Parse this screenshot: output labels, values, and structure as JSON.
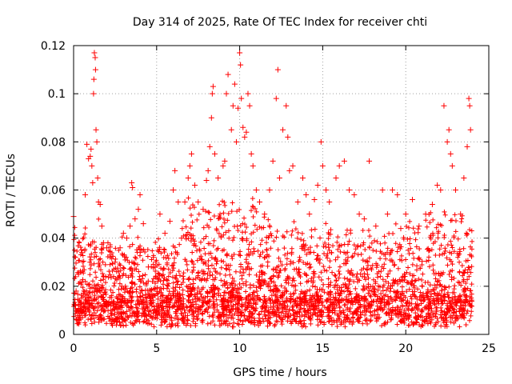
{
  "chart_data": {
    "type": "scatter",
    "title": "Day 314 of 2025, Rate Of TEC Index for receiver chti",
    "xlabel": "GPS time / hours",
    "ylabel": "ROTI / TECUs",
    "xlim": [
      0,
      25
    ],
    "ylim": [
      0,
      0.12
    ],
    "xticks": [
      0,
      5,
      10,
      15,
      20,
      25
    ],
    "yticks": [
      0,
      0.02,
      0.04,
      0.06,
      0.08,
      0.1,
      0.12
    ],
    "xtick_labels": [
      "0",
      "5",
      "10",
      "15",
      "20",
      "25"
    ],
    "ytick_labels": [
      "0",
      "0.02",
      "0.04",
      "0.06",
      "0.08",
      "0.1",
      "0.12"
    ],
    "grid": true,
    "marker": "plus",
    "color": "#ff0000",
    "series": [
      {
        "points": [
          [
            0.0,
            0.049
          ],
          [
            0.1,
            0.012
          ],
          [
            0.15,
            0.018
          ],
          [
            0.3,
            0.025
          ],
          [
            0.5,
            0.034
          ],
          [
            0.7,
            0.058
          ],
          [
            0.8,
            0.079
          ],
          [
            0.9,
            0.073
          ],
          [
            1.0,
            0.074
          ],
          [
            1.05,
            0.077
          ],
          [
            1.1,
            0.07
          ],
          [
            1.15,
            0.063
          ],
          [
            1.2,
            0.1
          ],
          [
            1.22,
            0.106
          ],
          [
            1.25,
            0.117
          ],
          [
            1.3,
            0.115
          ],
          [
            1.32,
            0.11
          ],
          [
            1.35,
            0.085
          ],
          [
            1.4,
            0.08
          ],
          [
            1.45,
            0.065
          ],
          [
            1.5,
            0.055
          ],
          [
            1.6,
            0.054
          ],
          [
            1.7,
            0.045
          ],
          [
            1.8,
            0.038
          ],
          [
            2.0,
            0.036
          ],
          [
            2.2,
            0.033
          ],
          [
            2.5,
            0.03
          ],
          [
            2.8,
            0.036
          ],
          [
            3.0,
            0.042
          ],
          [
            3.2,
            0.04
          ],
          [
            3.4,
            0.045
          ],
          [
            3.5,
            0.063
          ],
          [
            3.55,
            0.061
          ],
          [
            3.7,
            0.048
          ],
          [
            3.9,
            0.052
          ],
          [
            4.0,
            0.058
          ],
          [
            4.2,
            0.046
          ],
          [
            4.5,
            0.028
          ],
          [
            4.8,
            0.032
          ],
          [
            5.2,
            0.05
          ],
          [
            5.5,
            0.042
          ],
          [
            5.8,
            0.047
          ],
          [
            6.0,
            0.06
          ],
          [
            6.1,
            0.068
          ],
          [
            6.3,
            0.055
          ],
          [
            6.5,
            0.04
          ],
          [
            6.7,
            0.055
          ],
          [
            6.9,
            0.065
          ],
          [
            7.0,
            0.07
          ],
          [
            7.1,
            0.075
          ],
          [
            7.3,
            0.062
          ],
          [
            7.5,
            0.055
          ],
          [
            7.8,
            0.052
          ],
          [
            8.0,
            0.064
          ],
          [
            8.1,
            0.068
          ],
          [
            8.2,
            0.078
          ],
          [
            8.3,
            0.09
          ],
          [
            8.35,
            0.1
          ],
          [
            8.4,
            0.103
          ],
          [
            8.5,
            0.075
          ],
          [
            8.7,
            0.065
          ],
          [
            9.0,
            0.07
          ],
          [
            9.1,
            0.072
          ],
          [
            9.2,
            0.1
          ],
          [
            9.3,
            0.108
          ],
          [
            9.5,
            0.085
          ],
          [
            9.6,
            0.095
          ],
          [
            9.7,
            0.104
          ],
          [
            9.8,
            0.08
          ],
          [
            9.9,
            0.094
          ],
          [
            10.0,
            0.117
          ],
          [
            10.05,
            0.112
          ],
          [
            10.1,
            0.098
          ],
          [
            10.2,
            0.086
          ],
          [
            10.3,
            0.082
          ],
          [
            10.4,
            0.084
          ],
          [
            10.5,
            0.1
          ],
          [
            10.6,
            0.095
          ],
          [
            10.7,
            0.075
          ],
          [
            10.8,
            0.07
          ],
          [
            11.0,
            0.06
          ],
          [
            11.2,
            0.055
          ],
          [
            11.5,
            0.05
          ],
          [
            11.8,
            0.06
          ],
          [
            12.0,
            0.072
          ],
          [
            12.2,
            0.098
          ],
          [
            12.3,
            0.11
          ],
          [
            12.4,
            0.065
          ],
          [
            12.6,
            0.085
          ],
          [
            12.8,
            0.095
          ],
          [
            12.9,
            0.082
          ],
          [
            13.0,
            0.068
          ],
          [
            13.2,
            0.07
          ],
          [
            13.5,
            0.055
          ],
          [
            13.8,
            0.065
          ],
          [
            14.0,
            0.058
          ],
          [
            14.2,
            0.05
          ],
          [
            14.5,
            0.056
          ],
          [
            14.7,
            0.062
          ],
          [
            14.9,
            0.08
          ],
          [
            15.0,
            0.07
          ],
          [
            15.2,
            0.06
          ],
          [
            15.4,
            0.055
          ],
          [
            15.8,
            0.065
          ],
          [
            16.0,
            0.07
          ],
          [
            16.3,
            0.072
          ],
          [
            16.6,
            0.06
          ],
          [
            16.9,
            0.058
          ],
          [
            17.2,
            0.05
          ],
          [
            17.5,
            0.048
          ],
          [
            17.8,
            0.072
          ],
          [
            18.2,
            0.045
          ],
          [
            18.6,
            0.06
          ],
          [
            18.9,
            0.05
          ],
          [
            19.2,
            0.06
          ],
          [
            19.5,
            0.058
          ],
          [
            19.7,
            0.044
          ],
          [
            20.0,
            0.05
          ],
          [
            20.4,
            0.056
          ],
          [
            20.8,
            0.045
          ],
          [
            21.2,
            0.05
          ],
          [
            21.6,
            0.054
          ],
          [
            21.9,
            0.062
          ],
          [
            22.1,
            0.06
          ],
          [
            22.3,
            0.095
          ],
          [
            22.5,
            0.08
          ],
          [
            22.6,
            0.085
          ],
          [
            22.7,
            0.075
          ],
          [
            22.8,
            0.07
          ],
          [
            23.0,
            0.06
          ],
          [
            23.3,
            0.05
          ],
          [
            23.5,
            0.065
          ],
          [
            23.7,
            0.078
          ],
          [
            23.8,
            0.098
          ],
          [
            23.85,
            0.095
          ],
          [
            23.9,
            0.085
          ]
        ]
      }
    ]
  }
}
